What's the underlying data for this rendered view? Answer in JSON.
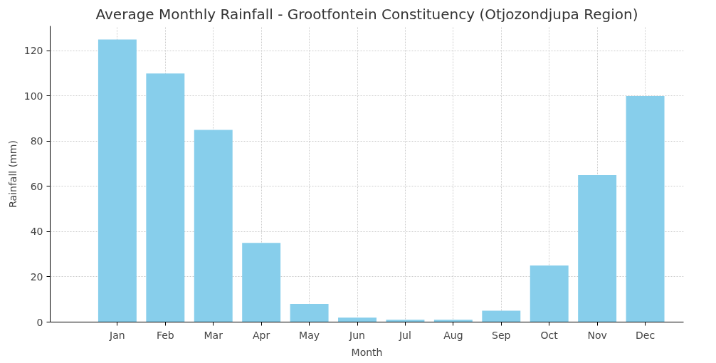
{
  "chart_data": {
    "type": "bar",
    "title": "Average Monthly Rainfall - Grootfontein Constituency (Otjozondjupa Region)",
    "xlabel": "Month",
    "ylabel": "Rainfall (mm)",
    "categories": [
      "Jan",
      "Feb",
      "Mar",
      "Apr",
      "May",
      "Jun",
      "Jul",
      "Aug",
      "Sep",
      "Oct",
      "Nov",
      "Dec"
    ],
    "values": [
      125,
      110,
      85,
      35,
      8,
      2,
      1,
      1,
      5,
      25,
      65,
      100
    ],
    "color": "#87ceeb",
    "ylim": [
      0,
      131
    ],
    "yticks": [
      0,
      20,
      40,
      60,
      80,
      100,
      120
    ],
    "grid": true
  }
}
